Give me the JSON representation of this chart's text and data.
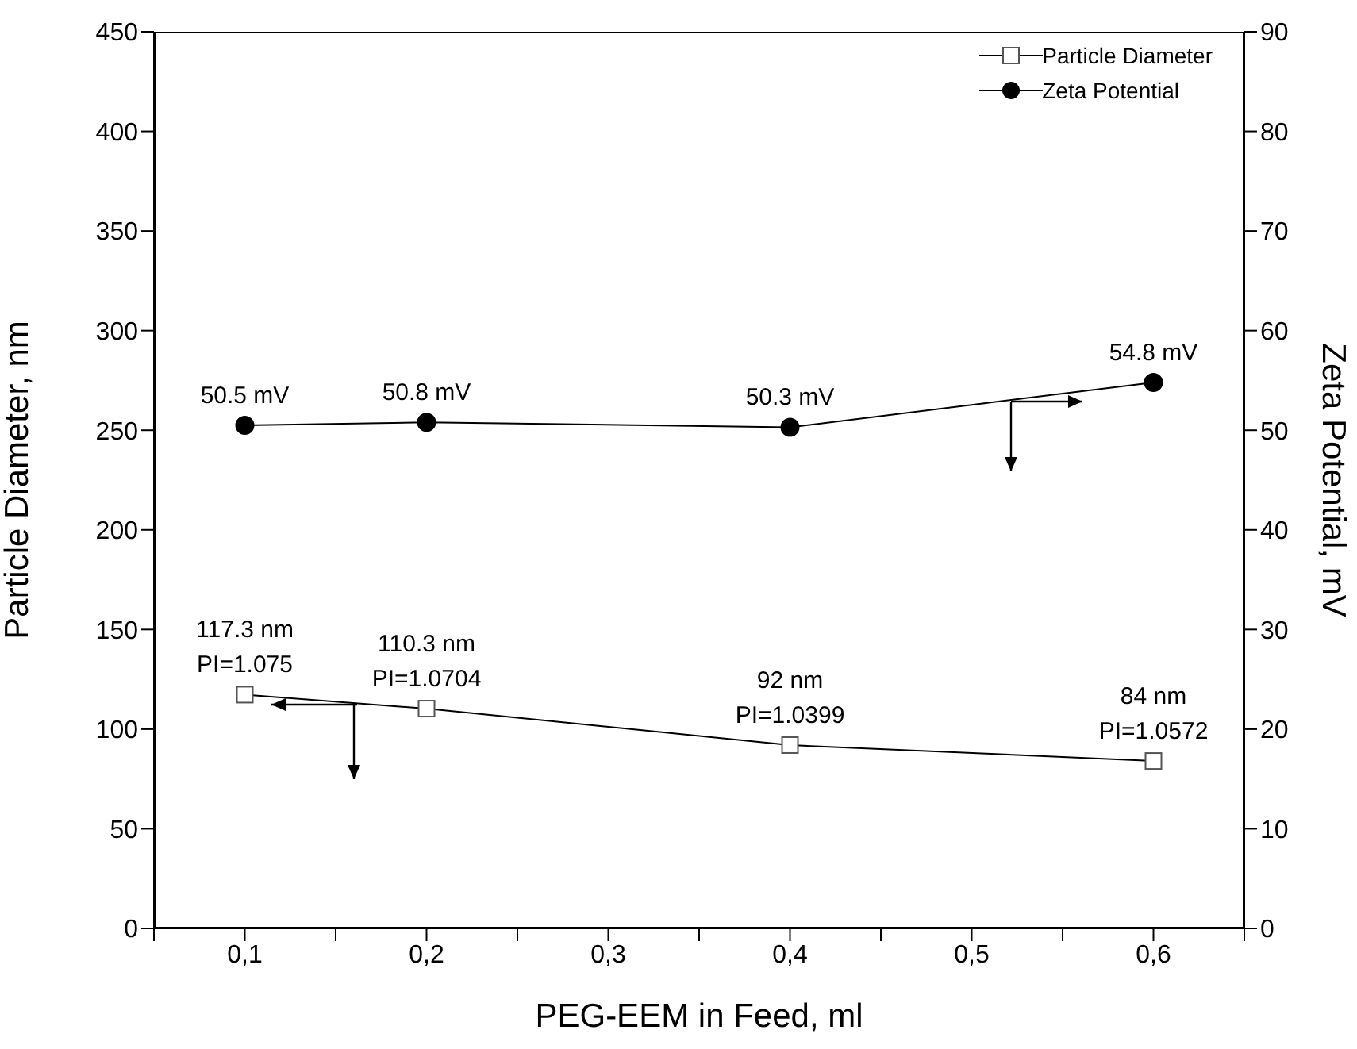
{
  "chart_data": {
    "type": "line",
    "xlabel": "PEG-EEM in Feed, ml",
    "ylabel": "Particle Diameter, nm",
    "y2label": "Zeta Potential, mV",
    "x": [
      0.1,
      0.2,
      0.4,
      0.6
    ],
    "xlim": [
      0.05,
      0.65
    ],
    "xticks": [
      {
        "value": 0.05,
        "label": null
      },
      {
        "value": 0.1,
        "label": "0,1"
      },
      {
        "value": 0.15,
        "label": null
      },
      {
        "value": 0.2,
        "label": "0,2"
      },
      {
        "value": 0.25,
        "label": null
      },
      {
        "value": 0.3,
        "label": "0,3"
      },
      {
        "value": 0.35,
        "label": null
      },
      {
        "value": 0.4,
        "label": "0,4"
      },
      {
        "value": 0.45,
        "label": null
      },
      {
        "value": 0.5,
        "label": "0,5"
      },
      {
        "value": 0.55,
        "label": null
      },
      {
        "value": 0.6,
        "label": "0,6"
      },
      {
        "value": 0.65,
        "label": null
      }
    ],
    "ylim": [
      0,
      450
    ],
    "yticks": [
      0,
      50,
      100,
      150,
      200,
      250,
      300,
      350,
      400,
      450
    ],
    "y2lim": [
      0,
      90
    ],
    "y2ticks": [
      0,
      10,
      20,
      30,
      40,
      50,
      60,
      70,
      80,
      90
    ],
    "series": [
      {
        "name": "Particle Diameter",
        "color": "#000000",
        "marker": "square",
        "values": [
          117.3,
          110.3,
          92,
          84
        ],
        "value_labels": [
          "117.3 nm\nPI=1.075",
          "110.3 nm\nPI=1.0704",
          "92 nm\nPI=1.0399",
          "84 nm\nPI=1.0572"
        ]
      },
      {
        "name": "Zeta Potential",
        "color": "#000000",
        "marker": "circle",
        "axis": "y2",
        "values": [
          50.5,
          50.8,
          50.3,
          54.8
        ],
        "value_labels": [
          "50.5 mV",
          "50.8 mV",
          "50.3 mV",
          "54.8 mV"
        ]
      }
    ],
    "legend": "top right"
  }
}
